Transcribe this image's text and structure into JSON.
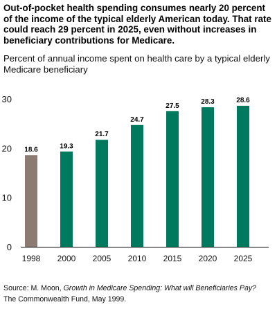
{
  "headline": "Out-of-pocket health spending consumes nearly 20 percent of the income of the typical elderly American today. That rate could reach 29 percent in 2025, even without increases in beneficiary contributions for Medicare.",
  "subtitle": "Percent of annual income spent on health care by a typical elderly Medicare beneficiary",
  "source": {
    "prefix": "Source: M. Moon, ",
    "title": "Growth in Medicare Spending: What will Beneficiaries Pay?",
    "suffix": "The Commonwealth Fund, May 1999."
  },
  "colors": {
    "historical": "#8c7b70",
    "projected": "#007a5e",
    "axis": "#000000"
  },
  "chart_data": {
    "type": "bar",
    "categories": [
      "1998",
      "2000",
      "2005",
      "2010",
      "2015",
      "2020",
      "2025"
    ],
    "values": [
      18.6,
      19.3,
      21.7,
      24.7,
      27.5,
      28.3,
      28.6
    ],
    "value_labels": [
      "18.6",
      "19.3",
      "21.7",
      "24.7",
      "27.5",
      "28.3",
      "28.6"
    ],
    "yticks": [
      0,
      10,
      20,
      30
    ],
    "ytick_labels": [
      "0",
      "10",
      "20",
      "30"
    ],
    "ylim": [
      0,
      30
    ],
    "grid": false,
    "title": "",
    "xlabel": "",
    "ylabel": ""
  }
}
